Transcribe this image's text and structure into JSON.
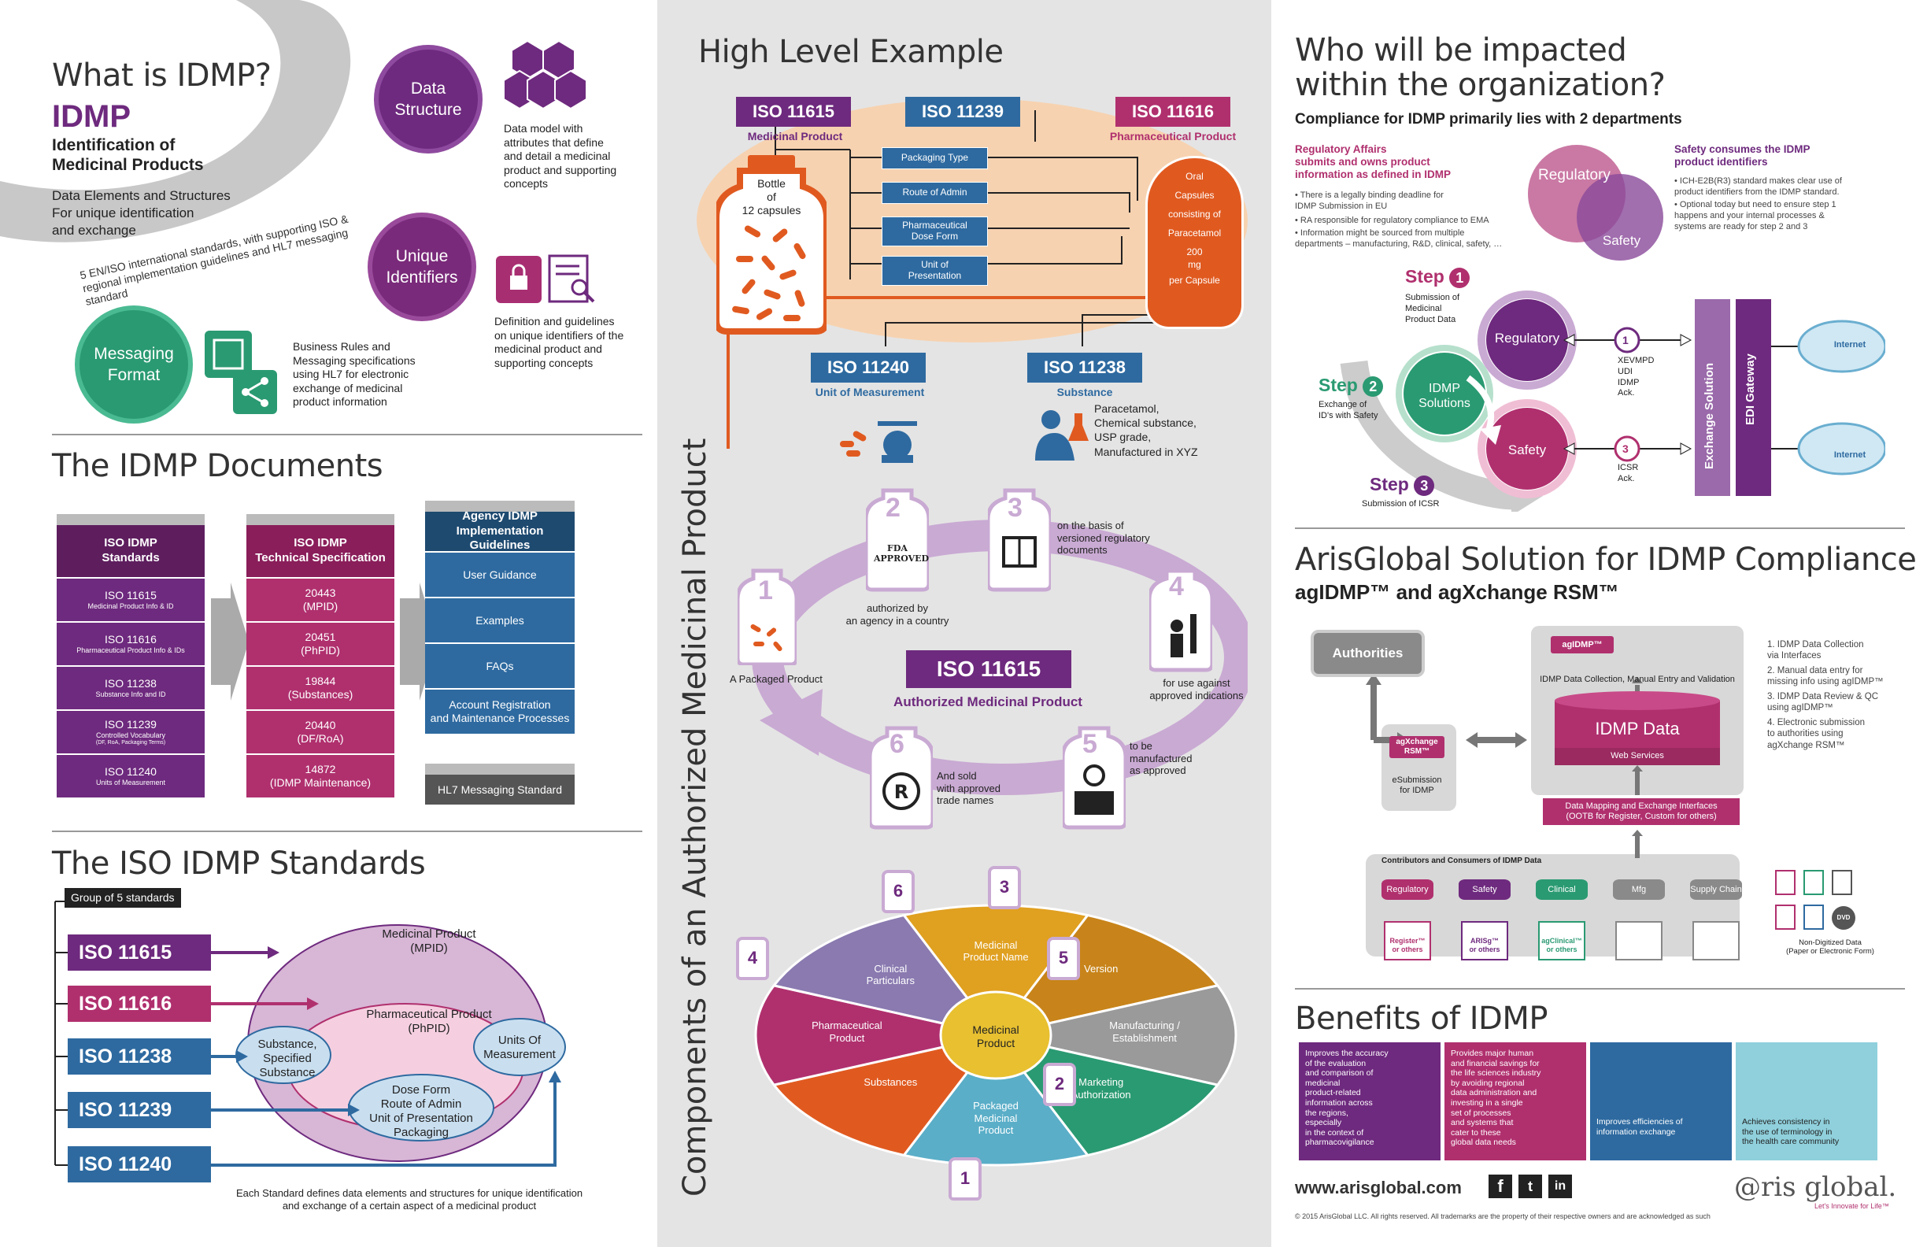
{
  "left": {
    "what_title": "What is IDMP?",
    "idmp": "IDMP",
    "idmp_sub": "Identification of\nMedicinal Products",
    "idmp_desc": "Data Elements and Structures\nFor unique identification\nand exchange",
    "arc_text": "5 EN/ISO international standards, with supporting ISO & regional implementation guidelines and HL7 messaging standard",
    "circles": [
      {
        "label": "Data\nStructure",
        "desc": "Data model with\nattributes that define\nand detail a medicinal\nproduct and supporting\nconcepts"
      },
      {
        "label": "Unique\nIdentifiers",
        "desc": "Definition and guidelines\non unique identifiers of the\nmedicinal product and\nsupporting concepts"
      },
      {
        "label": "Messaging\nFormat",
        "desc": "Business Rules and\nMessaging specifications\nusing HL7 for electronic\nexchange of medicinal\nproduct information"
      }
    ],
    "docs_title": "The IDMP Documents",
    "stack1": {
      "header": "ISO IDMP\nStandards",
      "items": [
        {
          "main": "ISO 11615",
          "sub": "Medicinal Product Info & ID"
        },
        {
          "main": "ISO 11616",
          "sub": "Pharmaceutical Product Info & IDs"
        },
        {
          "main": "ISO 11238",
          "sub": "Substance Info and ID"
        },
        {
          "main": "ISO 11239",
          "sub": "Controlled Vocabulary",
          "sub2": "(DF, RoA, Packaging Terms)"
        },
        {
          "main": "ISO 11240",
          "sub": "Units of Measurement"
        }
      ]
    },
    "stack2": {
      "header": "ISO IDMP\nTechnical Specification",
      "items": [
        {
          "main": "20443",
          "sub": "(MPID)"
        },
        {
          "main": "20451",
          "sub": "(PhPID)"
        },
        {
          "main": "19844",
          "sub": "(Substances)"
        },
        {
          "main": "20440",
          "sub": "(DF/RoA)"
        },
        {
          "main": "14872",
          "sub": "(IDMP Maintenance)"
        }
      ]
    },
    "stack3": {
      "header": "Agency IDMP\nImplementation Guidelines",
      "items": [
        "User Guidance",
        "Examples",
        "FAQs",
        "Account Registration\nand Maintenance Processes"
      ],
      "hl7": "HL7 Messaging Standard"
    },
    "std_title": "The ISO IDMP Standards",
    "group_label": "Group of 5 standards",
    "badges": [
      "ISO 11615",
      "ISO 11616",
      "ISO 11238",
      "ISO 11239",
      "ISO 11240"
    ],
    "ellipse": {
      "outer": "Medicinal Product\n(MPID)",
      "inner": "Pharmaceutical Product\n(PhPID)",
      "substance": "Substance,\nSpecified\nSubstance",
      "units": "Units Of\nMeasurement",
      "dose": "Dose Form\nRoute of Admin\nUnit of Presentation\nPackaging"
    },
    "std_footer": "Each Standard defines data elements and structures for unique identification\nand exchange of a certain aspect of a medicinal product"
  },
  "mid": {
    "title": "High Level Example",
    "iso_labels": [
      {
        "code": "ISO 11615",
        "cap": "Medicinal Product"
      },
      {
        "code": "ISO 11239",
        "cap": ""
      },
      {
        "code": "ISO 11616",
        "cap": "Pharmaceutical Product"
      },
      {
        "code": "ISO 11240",
        "cap": "Unit of Measurement"
      },
      {
        "code": "ISO 11238",
        "cap": "Substance"
      }
    ],
    "bottle": "Bottle\nof\n12 capsules",
    "vocab": [
      "Packaging Type",
      "Route of Admin",
      "Pharmaceutical\nDose Form",
      "Unit of\nPresentation"
    ],
    "capsule": [
      "Oral",
      "Capsules",
      "consisting of",
      "Paracetamol",
      "200\nmg",
      "per Capsule"
    ],
    "substance_desc": "Paracetamol,\nChemical substance,\nUSP grade,\nManufactured in XYZ",
    "vertical": "Components of an Authorized Medicinal Product",
    "cycle_center": "ISO 11615",
    "cycle_center_cap": "Authorized Medicinal Product",
    "cycle": [
      {
        "n": "1",
        "text": "A Packaged Product"
      },
      {
        "n": "2",
        "text": "authorized  by\nan agency in a country",
        "icon": "FDA\nAPPROVED"
      },
      {
        "n": "3",
        "text": "on the basis of\nversioned regulatory\ndocuments"
      },
      {
        "n": "4",
        "text": "for use against\napproved indications"
      },
      {
        "n": "5",
        "text": "to be\nmanufactured\nas approved"
      },
      {
        "n": "6",
        "text": "And sold\nwith approved\ntrade names"
      }
    ],
    "pie_center": "Medicinal\nProduct",
    "pie": [
      "Medicinal\nProduct Name",
      "Version",
      "Manufacturing /\nEstablishment",
      "Marketing\nAuthorization",
      "Packaged\nMedicinal\nProduct",
      "Substances",
      "Pharmaceutical\nProduct",
      "Clinical\nParticulars"
    ],
    "pie_nums": [
      "6",
      "3",
      "5",
      "2",
      "1",
      "4"
    ]
  },
  "right": {
    "title": "Who will be impacted\nwithin the organization?",
    "subtitle": "Compliance for IDMP primarily lies with 2 departments",
    "ra_head": "Regulatory Affairs\nsubmits and owns product\ninformation as defined in IDMP",
    "ra_bullets": [
      "There is a legally binding deadline for\nIDMP Submission in EU",
      "RA responsible for regulatory compliance to EMA",
      "Information might be sourced from multiple\ndepartments – manufacturing, R&D, clinical, safety, …"
    ],
    "venn": [
      "Regulatory",
      "Safety"
    ],
    "sf_head": "Safety consumes the IDMP\nproduct identifiers",
    "sf_bullets": [
      "ICH-E2B(R3) standard makes clear use of\nproduct identifiers from the IDMP standard.",
      "Optional today but need to ensure step 1\nhappens and your internal processes &\nsystems are ready for step 2 and 3"
    ],
    "step1": "Step",
    "step1_desc": "Submission of\nMedicinal\nProduct Data",
    "step2": "Step",
    "step2_desc": "Exchange of\nID's with Safety",
    "step3": "Step",
    "step3_desc": "Submission of ICSR",
    "flow_nodes": [
      "Regulatory",
      "IDMP\nSolutions",
      "Safety"
    ],
    "flow_n1": "XEVMPD\nUDI\nIDMP\nAck.",
    "flow_n3": "ICSR\nAck.",
    "exchange": "Exchange Solution",
    "edi": "EDI Gateway",
    "internet": "Internet",
    "aris_title": "ArisGlobal Solution for IDMP Compliance",
    "aris_sub": "agIDMP™ and agXchange RSM™",
    "authorities": "Authorities",
    "agidmp": "agIDMP™",
    "agx": "agXchange\nRSM™",
    "esub": "eSubmission\nfor IDMP",
    "collection": "IDMP Data Collection, Manual Entry and Validation",
    "idmpdata": "IDMP Data",
    "websvc": "Web Services",
    "mapping": "Data Mapping and Exchange Interfaces\n(OOTB for Register, Custom for others)",
    "contrib": "Contributors and Consumers of IDMP Data",
    "dbs": [
      "Regulatory",
      "Safety",
      "Clinical",
      "Mfg",
      "Supply Chain"
    ],
    "apps": [
      "Register™\nor others",
      "ARISg™\nor others",
      "agClinical™\nor others"
    ],
    "nondigital": "Non-Digitized Data\n(Paper or Electronic Form)",
    "steps_list": [
      "1. IDMP Data Collection\n    via Interfaces",
      "2. Manual data entry for\n    missing info using agIDMP™",
      "3. IDMP Data Review & QC\n    using agIDMP™",
      "4. Electronic submission\n    to authorities using\n    agXchange RSM™"
    ],
    "benefits_title": "Benefits of IDMP",
    "benefits": [
      "Improves the accuracy\nof the evaluation\nand comparison of\nmedicinal\nproduct-related\ninformation across\nthe regions,\nespecially\nin the context of\npharmacovigilance",
      "Provides major human\nand financial savings for\nthe life sciences industry\nby avoiding regional\ndata administration and\ninvesting in a single\nset of processes\nand systems that\ncater to these\nglobal data needs",
      "Improves efficiencies of\ninformation exchange",
      "Achieves consistency in\nthe use of terminology in\nthe health care community"
    ],
    "url": "www.arisglobal.com",
    "logo": "@ris global.",
    "tagline": "Let's Innovate for Life™",
    "copyright": "© 2015 ArisGlobal LLC. All rights reserved.  All trademarks are the property of their respective owners and are acknowledged as such"
  },
  "colors": {
    "purple": "#6e2a7e",
    "magenta": "#b0306e",
    "blue": "#2e6aa0",
    "teal": "#2a8a6a",
    "orange": "#e05a20",
    "peach": "#f7d2b0"
  }
}
